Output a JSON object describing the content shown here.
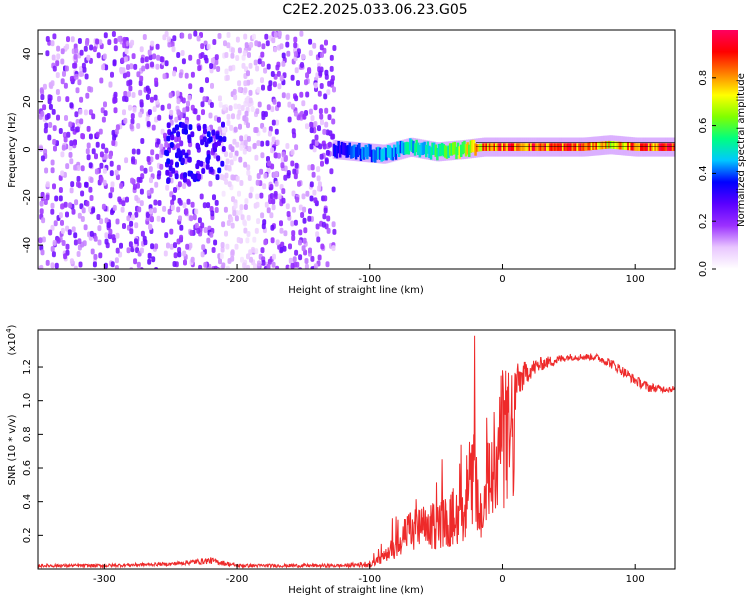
{
  "title": "C2E2.2025.033.06.23.G05",
  "chart_data": [
    {
      "type": "heatmap",
      "xlabel": "Height of straight line (km)",
      "ylabel": "Frequency (Hz)",
      "xlim": [
        -350,
        130
      ],
      "ylim": [
        -50,
        50
      ],
      "x_ticks": [
        -300,
        -200,
        -100,
        0,
        100
      ],
      "y_ticks": [
        -40,
        -20,
        0,
        20,
        40
      ],
      "colorbar": {
        "label": "Normalized spectral amplitude",
        "range": [
          0.0,
          1.0
        ],
        "ticks": [
          "0.0",
          "0.2",
          "0.4",
          "0.6",
          "0.8"
        ],
        "colors": [
          "#ffffff",
          "#e9c6ff",
          "#9b30ff",
          "#5a00ff",
          "#0000ff",
          "#00c8ff",
          "#00ff80",
          "#80ff00",
          "#ffff00",
          "#ff8000",
          "#ff0000",
          "#ff0060"
        ]
      },
      "noise_region_x": [
        -350,
        -128
      ],
      "signal_track": {
        "x": [
          -128,
          -110,
          -90,
          -70,
          -50,
          -30,
          -15,
          0,
          20,
          40,
          60,
          80,
          100,
          130
        ],
        "freq": [
          0,
          -1,
          -2,
          1,
          -1,
          0,
          1,
          1,
          1,
          1,
          1,
          2,
          1,
          1
        ],
        "amplitude": [
          0.35,
          0.4,
          0.45,
          0.5,
          0.55,
          0.7,
          0.85,
          0.9,
          0.9,
          0.9,
          0.9,
          0.75,
          0.9,
          0.9
        ]
      }
    },
    {
      "type": "line",
      "xlabel": "Height of straight line (km)",
      "ylabel": "SNR (10 * v/v)",
      "y_multiplier_label": "(x10",
      "y_multiplier_exp": "4",
      "xlim": [
        -350,
        130
      ],
      "ylim": [
        0,
        1.42
      ],
      "x_ticks": [
        -300,
        -200,
        -100,
        0,
        100
      ],
      "y_ticks": [
        "0.2",
        "0.4",
        "0.6",
        "0.8",
        "1.0",
        "1.2"
      ],
      "series": [
        {
          "color": "#ee2a2a",
          "x": [
            -350,
            -300,
            -250,
            -220,
            -200,
            -150,
            -120,
            -100,
            -90,
            -80,
            -70,
            -60,
            -50,
            -40,
            -30,
            -25,
            -20,
            -15,
            -10,
            -5,
            0,
            5,
            10,
            20,
            30,
            40,
            50,
            60,
            70,
            80,
            90,
            100,
            110,
            120,
            130
          ],
          "y": [
            0.02,
            0.02,
            0.03,
            0.05,
            0.02,
            0.02,
            0.02,
            0.03,
            0.08,
            0.18,
            0.28,
            0.3,
            0.32,
            0.36,
            0.45,
            0.62,
            0.7,
            0.3,
            0.7,
            0.85,
            1.0,
            0.95,
            1.1,
            1.18,
            1.22,
            1.24,
            1.26,
            1.26,
            1.26,
            1.23,
            1.18,
            1.12,
            1.08,
            1.07,
            1.07
          ],
          "noise_amp": [
            0.01,
            0.01,
            0.01,
            0.02,
            0.01,
            0.01,
            0.01,
            0.02,
            0.06,
            0.12,
            0.18,
            0.2,
            0.22,
            0.24,
            0.3,
            0.35,
            0.4,
            0.25,
            0.35,
            0.3,
            0.25,
            0.2,
            0.12,
            0.06,
            0.04,
            0.03,
            0.02,
            0.02,
            0.02,
            0.03,
            0.03,
            0.03,
            0.03,
            0.02,
            0.02
          ]
        }
      ]
    }
  ]
}
